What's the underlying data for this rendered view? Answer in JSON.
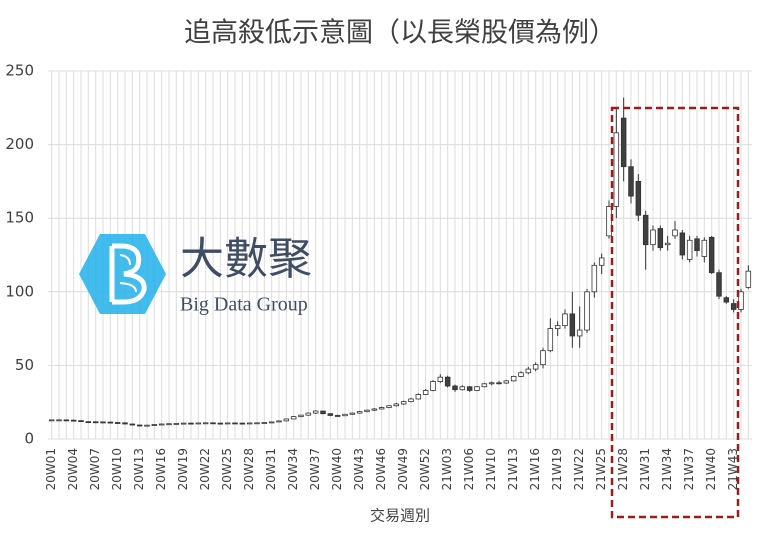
{
  "chart_data": {
    "type": "candlestick",
    "title": "追高殺低示意圖（以長榮股價為例）",
    "x_label": "交易週別",
    "categories": [
      "20W01",
      null,
      null,
      "20W04",
      null,
      null,
      "20W07",
      null,
      null,
      "20W10",
      null,
      null,
      "20W13",
      null,
      null,
      "20W16",
      null,
      null,
      "20W19",
      null,
      null,
      "20W22",
      null,
      null,
      "20W25",
      null,
      null,
      "20W28",
      null,
      null,
      "20W31",
      null,
      null,
      "20W34",
      null,
      null,
      "20W37",
      null,
      null,
      "20W40",
      null,
      null,
      "20W43",
      null,
      null,
      "20W46",
      null,
      null,
      "20W49",
      null,
      null,
      "20W52",
      null,
      null,
      "21W03",
      null,
      null,
      "21W06",
      null,
      null,
      "21W10",
      null,
      null,
      "21W13",
      null,
      null,
      "21W16",
      null,
      null,
      "21W19",
      null,
      null,
      "21W22",
      null,
      null,
      "21W25",
      null,
      null,
      "21W28",
      null,
      null,
      "21W31",
      null,
      null,
      "21W34",
      null,
      null,
      "21W37",
      null,
      null,
      "21W40",
      null,
      null,
      "21W43",
      null,
      null
    ],
    "open": [
      13,
      13,
      13,
      12.8,
      12.5,
      11.8,
      11.7,
      11.6,
      11.5,
      11.2,
      11,
      10.2,
      9.5,
      9.2,
      9.4,
      9.8,
      10.2,
      10.4,
      10.6,
      10.8,
      10.7,
      10.9,
      11,
      10.8,
      10.7,
      10.9,
      10.8,
      10.7,
      10.9,
      11,
      11.2,
      11.6,
      12.3,
      13.6,
      15.2,
      16.2,
      17.6,
      19,
      17.2,
      16,
      15.8,
      16.8,
      17.6,
      18.6,
      19.6,
      20.4,
      21.4,
      22.6,
      23.8,
      25.4,
      27.2,
      30.2,
      33,
      39,
      42,
      36,
      33.5,
      35.5,
      33,
      35.5,
      37.5,
      38.2,
      38,
      39.5,
      42.5,
      45,
      47.5,
      50.5,
      60,
      75,
      77,
      85,
      70,
      74,
      100,
      118,
      138,
      158,
      218,
      185,
      175,
      152,
      132,
      143,
      132,
      138,
      140,
      122,
      136,
      124,
      137,
      113,
      96,
      92,
      88,
      103
    ],
    "high": [
      13.2,
      13.3,
      13.2,
      13,
      12.6,
      12,
      12,
      11.8,
      11.7,
      11.4,
      11,
      10.4,
      9.8,
      9.6,
      10,
      10.4,
      10.6,
      10.8,
      11,
      11,
      11,
      11.2,
      11.2,
      11,
      11,
      11.1,
      11,
      11,
      11.2,
      11.4,
      11.8,
      12.5,
      14,
      15.5,
      16.5,
      18,
      19.5,
      19.2,
      17.5,
      16.5,
      17,
      18,
      19,
      20,
      21,
      22,
      23,
      24.5,
      26,
      28,
      31,
      34,
      40,
      44,
      43,
      37,
      36.5,
      36,
      36,
      38,
      39,
      39.5,
      40,
      43,
      46,
      49,
      52,
      62,
      82,
      80,
      88,
      100,
      90,
      102,
      120,
      126,
      162,
      225,
      232,
      190,
      180,
      155,
      145,
      145,
      138,
      148,
      142,
      138,
      138,
      137,
      138,
      115,
      97,
      95,
      102,
      118
    ],
    "low": [
      12.8,
      12.7,
      12.6,
      12.3,
      11.6,
      11.5,
      11.4,
      11.3,
      11,
      10.8,
      10,
      9.2,
      8.8,
      9,
      9.3,
      9.7,
      10,
      10.2,
      10.4,
      10.5,
      10.5,
      10.7,
      10.6,
      10.5,
      10.5,
      10.6,
      10.5,
      10.5,
      10.7,
      10.8,
      11,
      11.4,
      12,
      13.4,
      14.8,
      15.8,
      17,
      16.8,
      15.5,
      15.2,
      15.5,
      16.5,
      17.2,
      18.2,
      19,
      20,
      21,
      22,
      23.2,
      25,
      26.8,
      29.8,
      32.5,
      38,
      35,
      32,
      33,
      32,
      32.5,
      35,
      36.5,
      37,
      37.5,
      39,
      42,
      44,
      46,
      48,
      59,
      70,
      75,
      62,
      62,
      72,
      96,
      112,
      136,
      150,
      175,
      160,
      148,
      115,
      128,
      128,
      128,
      136,
      122,
      120,
      124,
      120,
      112,
      95,
      92,
      86,
      86,
      102
    ],
    "close": [
      13,
      13,
      12.8,
      12.5,
      11.8,
      11.7,
      11.6,
      11.5,
      11.2,
      11,
      10.2,
      9.5,
      9.2,
      9.4,
      9.8,
      10.2,
      10.4,
      10.6,
      10.8,
      10.7,
      10.9,
      11,
      10.8,
      10.7,
      10.9,
      10.8,
      10.7,
      10.9,
      11,
      11.2,
      11.6,
      12.3,
      13.6,
      15.2,
      16.2,
      17.6,
      19,
      17.2,
      16,
      15.8,
      16.8,
      17.6,
      18.6,
      19.6,
      20.4,
      21.4,
      22.6,
      23.8,
      25.4,
      27.2,
      30.2,
      33,
      39,
      42,
      36,
      33.5,
      35.5,
      33,
      35.5,
      37.5,
      38.2,
      38,
      39.5,
      42.5,
      45,
      47.5,
      50.5,
      60,
      75,
      77,
      85,
      70,
      74,
      100,
      118,
      123,
      158,
      208,
      185,
      165,
      152,
      132,
      142,
      130,
      133,
      142,
      125,
      135,
      128,
      135,
      113,
      97,
      93,
      88,
      100,
      114
    ],
    "up_color": "#ffffff",
    "down_color": "#404040",
    "edge_color": "#333333",
    "ylim": [
      0,
      250
    ],
    "yticks": [
      0,
      50,
      100,
      150,
      200,
      250
    ],
    "grid": true
  },
  "watermark": {
    "name": "大數聚",
    "name_en": "Big Data Group"
  }
}
